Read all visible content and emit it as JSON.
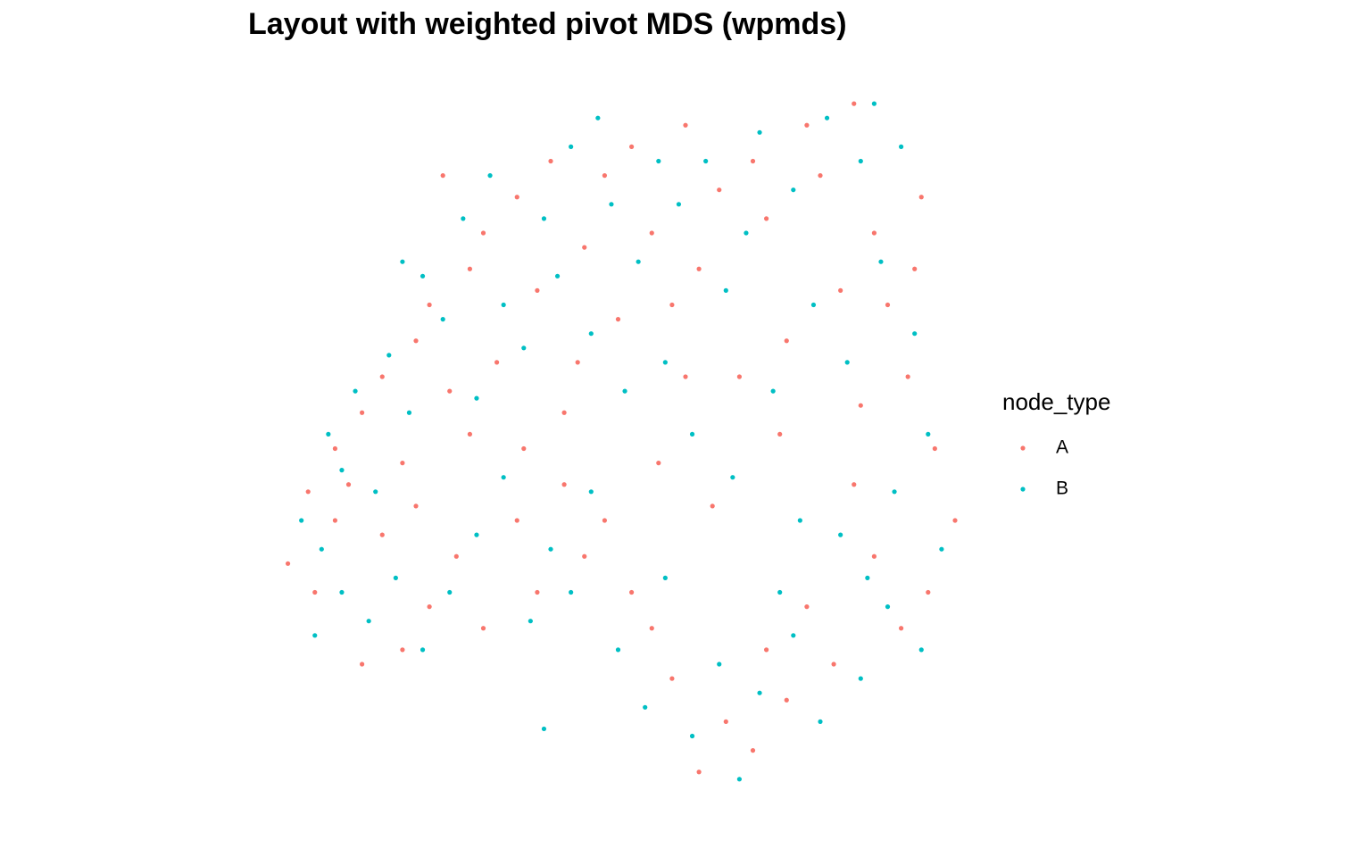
{
  "chart_data": {
    "type": "scatter",
    "title": "Layout with weighted pivot MDS (wpmds)",
    "legend_title": "node_type",
    "legend_position": "right",
    "xlim": [
      0,
      100
    ],
    "ylim": [
      0,
      100
    ],
    "series": [
      {
        "name": "A",
        "color": "#F8766D",
        "x": [
          1,
          5,
          8,
          10,
          12,
          15,
          18,
          20,
          22,
          25,
          28,
          30,
          32,
          35,
          38,
          40,
          42,
          45,
          48,
          50,
          52,
          55,
          58,
          60,
          62,
          65,
          68,
          70,
          72,
          75,
          78,
          80,
          83,
          85,
          88,
          90,
          93,
          95,
          97,
          100,
          96,
          92,
          88,
          85,
          82,
          78,
          75,
          72,
          70,
          66,
          62,
          58,
          55,
          52,
          48,
          45,
          42,
          38,
          35,
          30,
          26,
          22,
          18,
          15,
          12,
          8,
          4,
          20,
          28,
          36,
          44,
          56,
          64,
          74,
          86,
          94,
          60,
          24
        ],
        "values": [
          34,
          30,
          50,
          45,
          55,
          60,
          48,
          65,
          70,
          58,
          75,
          80,
          62,
          85,
          72,
          90,
          55,
          78,
          88,
          68,
          92,
          80,
          70,
          95,
          75,
          86,
          60,
          90,
          82,
          65,
          95,
          88,
          72,
          98,
          80,
          70,
          60,
          85,
          50,
          40,
          30,
          25,
          35,
          45,
          20,
          28,
          15,
          22,
          8,
          12,
          5,
          18,
          25,
          30,
          40,
          35,
          45,
          30,
          40,
          25,
          35,
          28,
          22,
          38,
          20,
          40,
          44,
          42,
          52,
          50,
          62,
          48,
          42,
          52,
          56,
          75,
          60,
          88
        ]
      },
      {
        "name": "B",
        "color": "#00BFC4",
        "x": [
          3,
          6,
          7,
          9,
          11,
          14,
          16,
          19,
          21,
          24,
          27,
          29,
          31,
          33,
          36,
          39,
          41,
          43,
          46,
          49,
          51,
          53,
          56,
          57,
          59,
          61,
          63,
          66,
          67,
          69,
          71,
          73,
          76,
          77,
          79,
          81,
          84,
          86,
          87,
          89,
          91,
          92,
          94,
          96,
          98,
          95,
          90,
          86,
          83,
          80,
          76,
          74,
          71,
          68,
          65,
          61,
          57,
          54,
          50,
          46,
          43,
          40,
          37,
          33,
          29,
          25,
          21,
          17,
          13,
          9,
          5,
          39,
          18,
          47,
          88
        ],
        "values": [
          40,
          36,
          52,
          47,
          58,
          44,
          63,
          55,
          74,
          68,
          82,
          57,
          88,
          70,
          64,
          82,
          74,
          92,
          66,
          84,
          58,
          76,
          90,
          62,
          84,
          52,
          90,
          72,
          46,
          80,
          94,
          58,
          86,
          40,
          70,
          96,
          62,
          90,
          32,
          76,
          44,
          92,
          66,
          52,
          36,
          22,
          28,
          18,
          38,
          12,
          24,
          30,
          16,
          4,
          20,
          10,
          32,
          14,
          22,
          44,
          30,
          36,
          26,
          46,
          38,
          30,
          22,
          32,
          26,
          30,
          24,
          11,
          76,
          96,
          98
        ]
      }
    ]
  }
}
